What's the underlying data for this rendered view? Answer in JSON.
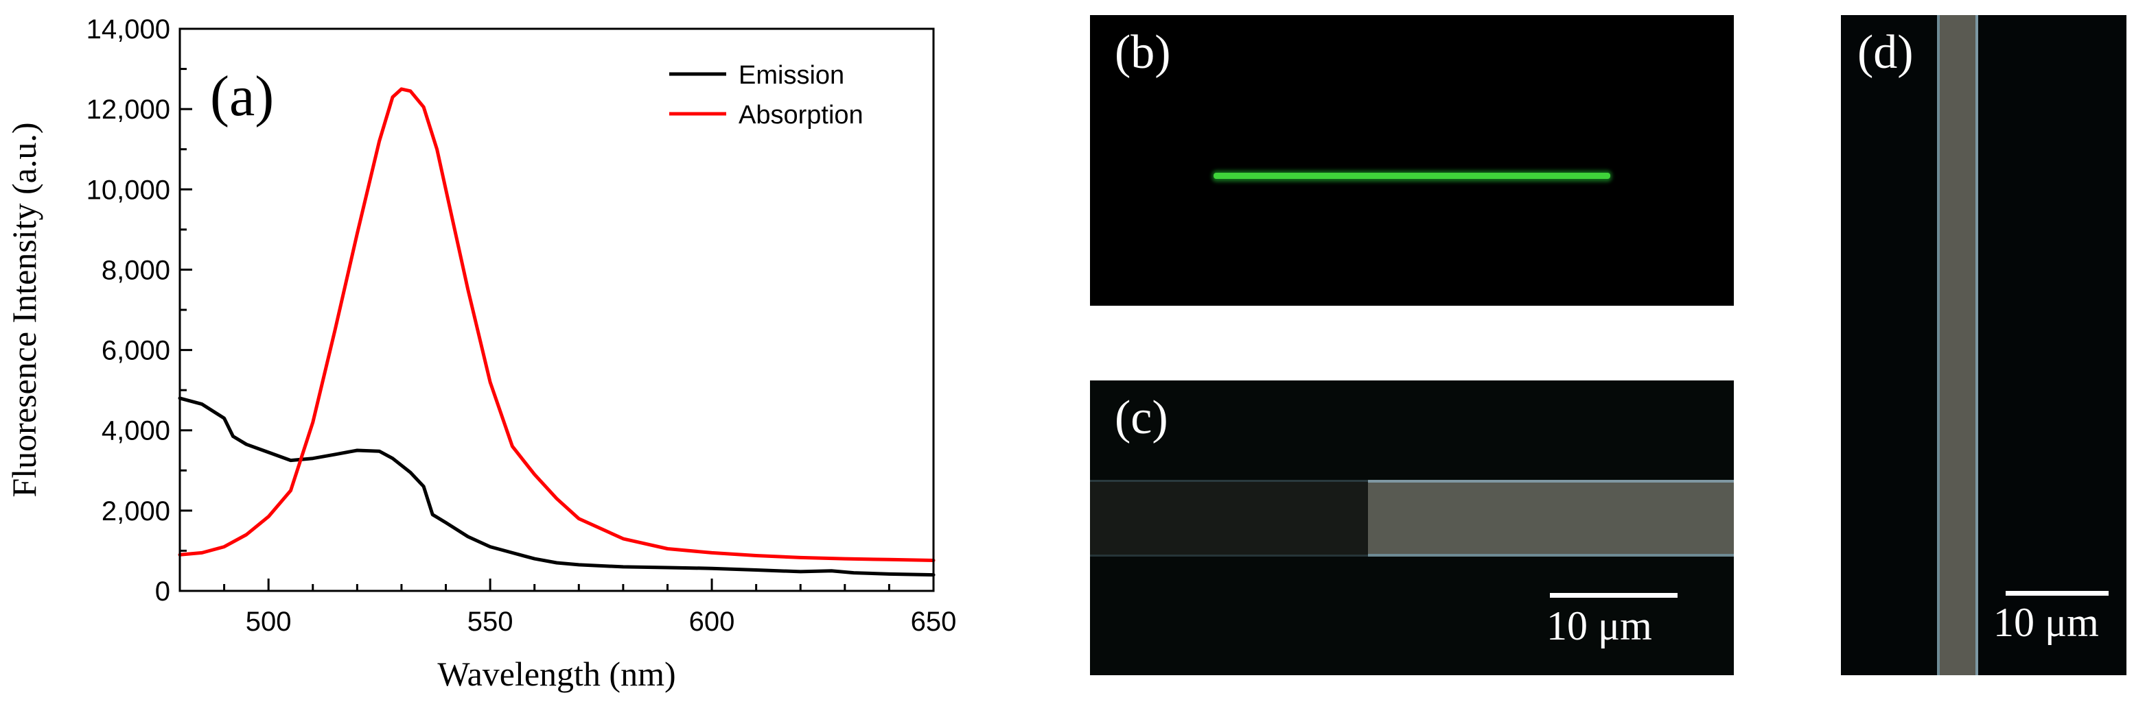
{
  "chart_data": {
    "type": "line",
    "panel_label": "(a)",
    "xlabel": "Wavelength (nm)",
    "ylabel": "Fluoresence Intensity (a.u.)",
    "xlim": [
      480,
      650
    ],
    "ylim": [
      0,
      14000
    ],
    "x_ticks": [
      500,
      550,
      600,
      650
    ],
    "x_tick_labels": [
      "500",
      "550",
      "600",
      "650"
    ],
    "y_ticks": [
      0,
      2000,
      4000,
      6000,
      8000,
      10000,
      12000,
      14000
    ],
    "y_tick_labels": [
      "0",
      "2,000",
      "4,000",
      "6,000",
      "8,000",
      "10,000",
      "12,000",
      "14,000"
    ],
    "grid": false,
    "legend_position": "top-right",
    "series": [
      {
        "name": "Emission",
        "color": "#000000",
        "x": [
          480,
          485,
          490,
          492,
          495,
          500,
          505,
          510,
          515,
          520,
          525,
          528,
          532,
          535,
          537,
          540,
          545,
          550,
          555,
          560,
          565,
          570,
          580,
          590,
          600,
          610,
          620,
          627,
          632,
          640,
          650
        ],
        "y": [
          4800,
          4650,
          4300,
          3850,
          3650,
          3450,
          3250,
          3300,
          3400,
          3500,
          3480,
          3300,
          2950,
          2600,
          1900,
          1700,
          1350,
          1100,
          950,
          800,
          700,
          650,
          600,
          580,
          560,
          520,
          480,
          500,
          450,
          420,
          400
        ]
      },
      {
        "name": "Absorption",
        "color": "#ff0000",
        "x": [
          480,
          485,
          490,
          495,
          500,
          505,
          510,
          515,
          520,
          525,
          528,
          530,
          532,
          535,
          538,
          540,
          545,
          550,
          555,
          560,
          565,
          570,
          580,
          590,
          600,
          610,
          620,
          630,
          640,
          650
        ],
        "y": [
          900,
          950,
          1100,
          1400,
          1850,
          2500,
          4200,
          6500,
          8900,
          11200,
          12300,
          12500,
          12450,
          12050,
          11000,
          10000,
          7500,
          5200,
          3600,
          2900,
          2300,
          1800,
          1300,
          1050,
          950,
          880,
          830,
          800,
          780,
          760
        ]
      }
    ]
  },
  "panel_b": {
    "label": "(b)"
  },
  "panel_c": {
    "label": "(c)",
    "scale_text": "10 μm"
  },
  "panel_d": {
    "label": "(d)",
    "scale_text": "10 μm"
  }
}
